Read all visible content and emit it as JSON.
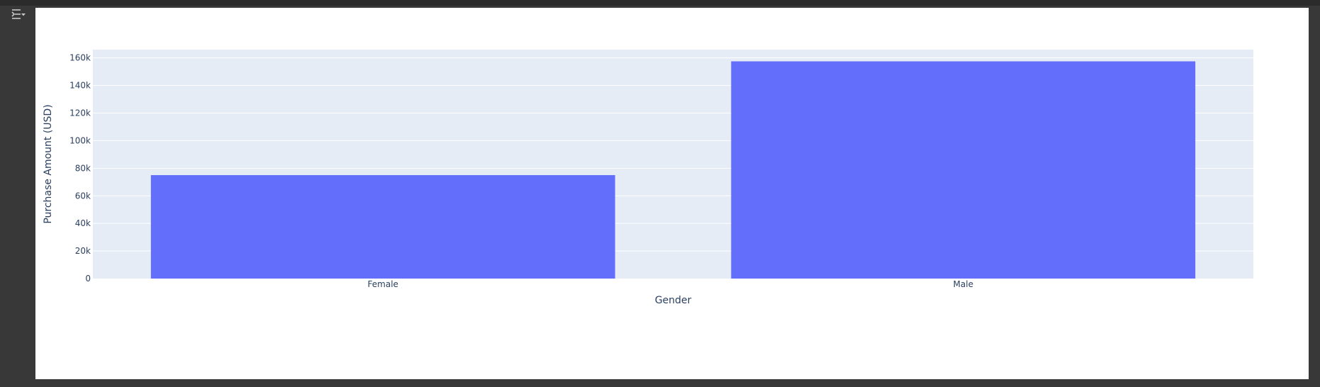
{
  "toolbar": {
    "toggle_icon": "output-collapse-icon"
  },
  "colors": {
    "plot_bg": "#e5ecf6",
    "bar": "#636efa",
    "grid": "#ffffff",
    "text": "#2a3f5f"
  },
  "chart_data": {
    "type": "bar",
    "categories": [
      "Female",
      "Male"
    ],
    "values": [
      75000,
      157500
    ],
    "xlabel": "Gender",
    "ylabel": "Purchase Amount (USD)",
    "ylim": [
      0,
      166000
    ],
    "yticks": [
      0,
      20000,
      40000,
      60000,
      80000,
      100000,
      120000,
      140000,
      160000
    ],
    "ytick_labels": [
      "0",
      "20k",
      "40k",
      "60k",
      "80k",
      "100k",
      "120k",
      "140k",
      "160k"
    ],
    "grid": true,
    "legend": "none"
  }
}
